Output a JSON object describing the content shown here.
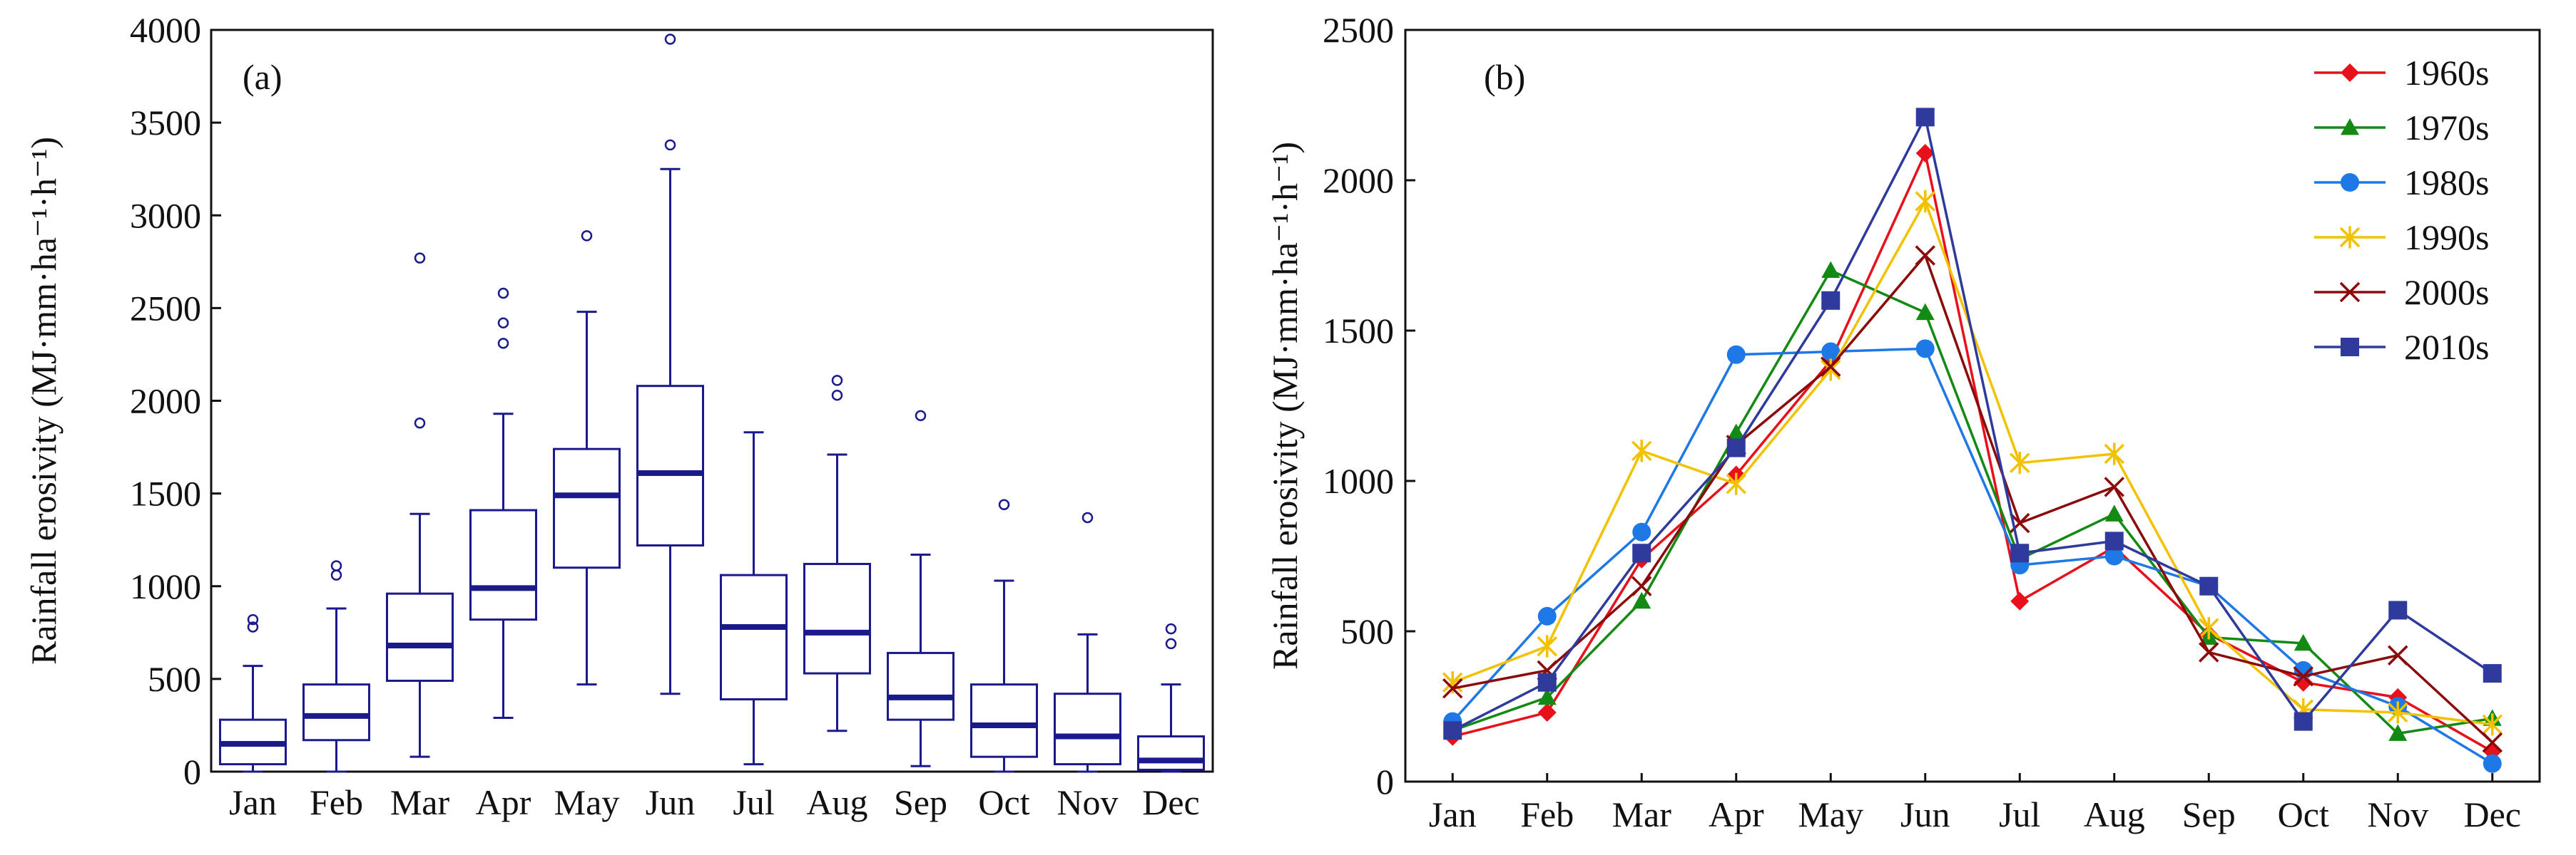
{
  "chart_data": [
    {
      "type": "box",
      "panel_label": "(a)",
      "ylabel": "Rainfall erosivity (MJ·mm·ha⁻¹·h⁻¹)",
      "categories": [
        "Jan",
        "Feb",
        "Mar",
        "Apr",
        "May",
        "Jun",
        "Jul",
        "Aug",
        "Sep",
        "Oct",
        "Nov",
        "Dec"
      ],
      "ylim": [
        0,
        4000
      ],
      "yticks": [
        "0",
        "500",
        "1000",
        "1500",
        "2000",
        "2500",
        "3000",
        "3500",
        "4000"
      ],
      "color": "#1a1a8c",
      "boxes": [
        {
          "whisker_low": 0,
          "q1": 40,
          "median": 150,
          "q3": 280,
          "whisker_high": 570,
          "outliers": [
            780,
            820
          ]
        },
        {
          "whisker_low": 0,
          "q1": 170,
          "median": 300,
          "q3": 470,
          "whisker_high": 880,
          "outliers": [
            1060,
            1110
          ]
        },
        {
          "whisker_low": 80,
          "q1": 490,
          "median": 680,
          "q3": 960,
          "whisker_high": 1390,
          "outliers": [
            1880,
            2770
          ]
        },
        {
          "whisker_low": 290,
          "q1": 820,
          "median": 990,
          "q3": 1410,
          "whisker_high": 1930,
          "outliers": [
            2310,
            2420,
            2580
          ]
        },
        {
          "whisker_low": 470,
          "q1": 1100,
          "median": 1490,
          "q3": 1740,
          "whisker_high": 2480,
          "outliers": [
            2890
          ]
        },
        {
          "whisker_low": 420,
          "q1": 1220,
          "median": 1610,
          "q3": 2080,
          "whisker_high": 3250,
          "outliers": [
            3380,
            3950
          ]
        },
        {
          "whisker_low": 40,
          "q1": 390,
          "median": 780,
          "q3": 1060,
          "whisker_high": 1830,
          "outliers": []
        },
        {
          "whisker_low": 220,
          "q1": 530,
          "median": 750,
          "q3": 1120,
          "whisker_high": 1710,
          "outliers": [
            2030,
            2110
          ]
        },
        {
          "whisker_low": 30,
          "q1": 280,
          "median": 400,
          "q3": 640,
          "whisker_high": 1170,
          "outliers": [
            1920
          ]
        },
        {
          "whisker_low": 0,
          "q1": 80,
          "median": 250,
          "q3": 470,
          "whisker_high": 1030,
          "outliers": [
            1440
          ]
        },
        {
          "whisker_low": 0,
          "q1": 40,
          "median": 190,
          "q3": 420,
          "whisker_high": 740,
          "outliers": [
            1370
          ]
        },
        {
          "whisker_low": 0,
          "q1": 10,
          "median": 60,
          "q3": 190,
          "whisker_high": 470,
          "outliers": [
            690,
            770
          ]
        }
      ]
    },
    {
      "type": "line",
      "panel_label": "(b)",
      "ylabel": "Rainfall erosivity (MJ·mm·ha⁻¹·h⁻¹)",
      "categories": [
        "Jan",
        "Feb",
        "Mar",
        "Apr",
        "May",
        "Jun",
        "Jul",
        "Aug",
        "Sep",
        "Oct",
        "Nov",
        "Dec"
      ],
      "ylim": [
        0,
        2500
      ],
      "yticks": [
        "0",
        "500",
        "1000",
        "1500",
        "2000",
        "2500"
      ],
      "legend_position": "top-right",
      "series": [
        {
          "name": "1960s",
          "color": "#e8101a",
          "marker": "diamond",
          "values": [
            150,
            230,
            740,
            1020,
            1400,
            2090,
            600,
            780,
            490,
            330,
            280,
            100
          ]
        },
        {
          "name": "1970s",
          "color": "#138a13",
          "marker": "triangle",
          "values": [
            170,
            280,
            600,
            1160,
            1700,
            1560,
            740,
            890,
            480,
            460,
            160,
            210
          ]
        },
        {
          "name": "1980s",
          "color": "#1e78e6",
          "marker": "circle",
          "values": [
            200,
            550,
            830,
            1420,
            1430,
            1440,
            720,
            750,
            650,
            370,
            250,
            60
          ]
        },
        {
          "name": "1990s",
          "color": "#f2c200",
          "marker": "star",
          "values": [
            330,
            450,
            1100,
            990,
            1370,
            1930,
            1060,
            1090,
            510,
            240,
            230,
            190
          ]
        },
        {
          "name": "2000s",
          "color": "#8b0a0a",
          "marker": "x",
          "values": [
            310,
            370,
            650,
            1120,
            1380,
            1750,
            860,
            980,
            430,
            350,
            420,
            130
          ]
        },
        {
          "name": "2010s",
          "color": "#2e3a9c",
          "marker": "square",
          "values": [
            170,
            330,
            760,
            1110,
            1600,
            2210,
            760,
            800,
            650,
            200,
            570,
            360
          ]
        }
      ]
    }
  ]
}
